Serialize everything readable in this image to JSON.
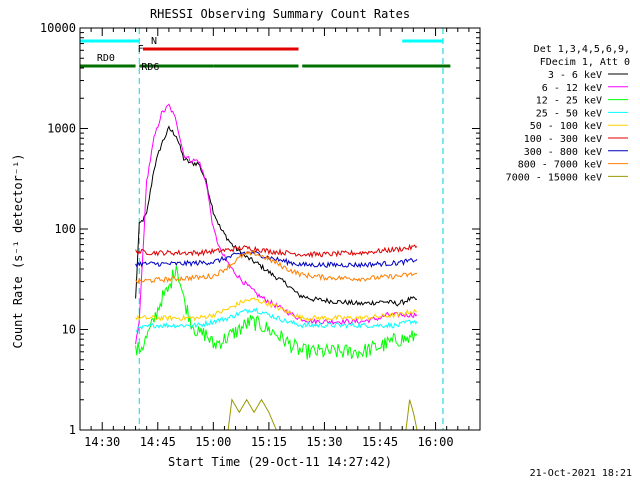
{
  "chart_data": {
    "type": "line",
    "title": "RHESSI Observing Summary Count Rates",
    "xlabel": "Start Time (29-Oct-11 14:27:42)",
    "ylabel": "Count Rate (s⁻¹ detector⁻¹)",
    "y_scale": "log",
    "ylim": [
      1,
      10000
    ],
    "xlim": [
      "14:24",
      "16:12"
    ],
    "x_ticks": [
      "14:30",
      "14:45",
      "15:00",
      "15:15",
      "15:30",
      "15:45",
      "16:00"
    ],
    "y_ticks": [
      "1",
      "10",
      "100",
      "1000",
      "10000"
    ],
    "grid": false,
    "legend_position": "right",
    "legend_header": [
      "Det 1,3,4,5,6,9,",
      "FDecim 1, Att 0"
    ],
    "footer_date": "21-Oct-2021 18:21",
    "state_bars": [
      {
        "label": "N",
        "color": "#00ffff",
        "segments": [
          [
            "14:24",
            "14:40"
          ],
          [
            "15:51",
            "16:02"
          ]
        ]
      },
      {
        "label": "F",
        "color": "#e00000",
        "segments": [
          [
            "14:41",
            "15:23"
          ]
        ]
      },
      {
        "label": "RD0",
        "color": "#007000",
        "segments": [
          [
            "14:24",
            "14:39"
          ]
        ]
      },
      {
        "label": "RD6",
        "color": "#007000",
        "segments": [
          [
            "14:40",
            "15:00"
          ],
          [
            "15:00",
            "15:23"
          ],
          [
            "15:24",
            "15:50"
          ],
          [
            "15:50",
            "16:04"
          ]
        ]
      }
    ],
    "eclipse_lines": [
      "14:40",
      "16:02"
    ],
    "series": [
      {
        "name": "3 - 6 keV",
        "color": "#000000",
        "points": [
          [
            "14:39",
            20
          ],
          [
            "14:40",
            110
          ],
          [
            "14:42",
            140
          ],
          [
            "14:44",
            400
          ],
          [
            "14:46",
            700
          ],
          [
            "14:48",
            1000
          ],
          [
            "14:50",
            850
          ],
          [
            "14:52",
            500
          ],
          [
            "14:54",
            450
          ],
          [
            "14:56",
            450
          ],
          [
            "14:58",
            300
          ],
          [
            "15:00",
            150
          ],
          [
            "15:02",
            100
          ],
          [
            "15:05",
            70
          ],
          [
            "15:08",
            55
          ],
          [
            "15:12",
            45
          ],
          [
            "15:16",
            35
          ],
          [
            "15:20",
            28
          ],
          [
            "15:23",
            22
          ],
          [
            "15:27",
            20
          ],
          [
            "15:33",
            19
          ],
          [
            "15:40",
            18
          ],
          [
            "15:46",
            19
          ],
          [
            "15:50",
            18
          ],
          [
            "15:53",
            20
          ],
          [
            "15:55",
            20
          ]
        ]
      },
      {
        "name": "6 - 12 keV",
        "color": "#ff00ff",
        "points": [
          [
            "14:39",
            7
          ],
          [
            "14:40",
            12
          ],
          [
            "14:42",
            300
          ],
          [
            "14:44",
            800
          ],
          [
            "14:46",
            1400
          ],
          [
            "14:48",
            1700
          ],
          [
            "14:50",
            1200
          ],
          [
            "14:52",
            550
          ],
          [
            "14:54",
            480
          ],
          [
            "14:56",
            480
          ],
          [
            "14:58",
            300
          ],
          [
            "15:00",
            100
          ],
          [
            "15:02",
            60
          ],
          [
            "15:05",
            40
          ],
          [
            "15:08",
            30
          ],
          [
            "15:12",
            22
          ],
          [
            "15:16",
            18
          ],
          [
            "15:20",
            15
          ],
          [
            "15:23",
            13
          ],
          [
            "15:27",
            12
          ],
          [
            "15:33",
            12
          ],
          [
            "15:40",
            12
          ],
          [
            "15:45",
            13
          ],
          [
            "15:47",
            14
          ],
          [
            "15:50",
            14
          ],
          [
            "15:53",
            14
          ],
          [
            "15:55",
            14
          ]
        ]
      },
      {
        "name": "12 - 25 keV",
        "color": "#00ff00",
        "points": [
          [
            "14:39",
            6
          ],
          [
            "14:41",
            7
          ],
          [
            "14:43",
            10
          ],
          [
            "14:46",
            20
          ],
          [
            "14:48",
            25
          ],
          [
            "14:50",
            45
          ],
          [
            "14:52",
            20
          ],
          [
            "14:54",
            12
          ],
          [
            "14:56",
            9
          ],
          [
            "14:58",
            9
          ],
          [
            "15:00",
            7
          ],
          [
            "15:03",
            8
          ],
          [
            "15:07",
            10
          ],
          [
            "15:10",
            12
          ],
          [
            "15:13",
            11
          ],
          [
            "15:17",
            9
          ],
          [
            "15:21",
            7
          ],
          [
            "15:24",
            6
          ],
          [
            "15:30",
            6
          ],
          [
            "15:40",
            6
          ],
          [
            "15:46",
            7
          ],
          [
            "15:50",
            8
          ],
          [
            "15:53",
            8
          ],
          [
            "15:55",
            9
          ]
        ]
      },
      {
        "name": "25 - 50 keV",
        "color": "#00ffff",
        "points": [
          [
            "14:39",
            10
          ],
          [
            "14:44",
            11
          ],
          [
            "14:50",
            11
          ],
          [
            "14:56",
            11
          ],
          [
            "15:00",
            12
          ],
          [
            "15:04",
            13
          ],
          [
            "15:08",
            15
          ],
          [
            "15:11",
            16
          ],
          [
            "15:15",
            14
          ],
          [
            "15:20",
            12
          ],
          [
            "15:24",
            11
          ],
          [
            "15:30",
            11
          ],
          [
            "15:40",
            11
          ],
          [
            "15:50",
            11
          ],
          [
            "15:53",
            12
          ],
          [
            "15:55",
            12
          ]
        ]
      },
      {
        "name": "50 - 100 keV",
        "color": "#ffd000",
        "points": [
          [
            "14:39",
            13
          ],
          [
            "14:44",
            13
          ],
          [
            "14:50",
            13
          ],
          [
            "14:56",
            13
          ],
          [
            "15:00",
            14
          ],
          [
            "15:04",
            16
          ],
          [
            "15:08",
            19
          ],
          [
            "15:11",
            20
          ],
          [
            "15:15",
            18
          ],
          [
            "15:20",
            15
          ],
          [
            "15:24",
            13
          ],
          [
            "15:30",
            13
          ],
          [
            "15:40",
            13
          ],
          [
            "15:50",
            14
          ],
          [
            "15:53",
            15
          ],
          [
            "15:55",
            15
          ]
        ]
      },
      {
        "name": "100 - 300 keV",
        "color": "#e00000",
        "points": [
          [
            "14:39",
            60
          ],
          [
            "14:44",
            58
          ],
          [
            "14:50",
            58
          ],
          [
            "14:56",
            58
          ],
          [
            "15:00",
            60
          ],
          [
            "15:04",
            62
          ],
          [
            "15:08",
            65
          ],
          [
            "15:11",
            64
          ],
          [
            "15:15",
            60
          ],
          [
            "15:20",
            58
          ],
          [
            "15:24",
            56
          ],
          [
            "15:30",
            56
          ],
          [
            "15:40",
            58
          ],
          [
            "15:50",
            63
          ],
          [
            "15:53",
            65
          ],
          [
            "15:55",
            67
          ]
        ]
      },
      {
        "name": "300 - 800 keV",
        "color": "#0000c0",
        "points": [
          [
            "14:39",
            45
          ],
          [
            "14:44",
            45
          ],
          [
            "14:50",
            45
          ],
          [
            "14:56",
            46
          ],
          [
            "15:00",
            47
          ],
          [
            "15:04",
            52
          ],
          [
            "15:08",
            58
          ],
          [
            "15:11",
            58
          ],
          [
            "15:15",
            52
          ],
          [
            "15:20",
            47
          ],
          [
            "15:24",
            44
          ],
          [
            "15:30",
            44
          ],
          [
            "15:40",
            44
          ],
          [
            "15:50",
            46
          ],
          [
            "15:53",
            48
          ],
          [
            "15:55",
            50
          ]
        ]
      },
      {
        "name": "800 - 7000 keV",
        "color": "#ff7f00",
        "points": [
          [
            "14:39",
            30
          ],
          [
            "14:44",
            31
          ],
          [
            "14:50",
            32
          ],
          [
            "14:56",
            33
          ],
          [
            "15:00",
            34
          ],
          [
            "15:04",
            42
          ],
          [
            "15:08",
            55
          ],
          [
            "15:11",
            58
          ],
          [
            "15:15",
            50
          ],
          [
            "15:20",
            40
          ],
          [
            "15:24",
            35
          ],
          [
            "15:30",
            33
          ],
          [
            "15:40",
            32
          ],
          [
            "15:50",
            34
          ],
          [
            "15:53",
            35
          ],
          [
            "15:55",
            36
          ]
        ]
      },
      {
        "name": "7000 - 15000 keV",
        "color": "#999900",
        "points": [
          [
            "15:00",
            1
          ],
          [
            "15:04",
            1
          ],
          [
            "15:05",
            2
          ],
          [
            "15:07",
            1.5
          ],
          [
            "15:09",
            2
          ],
          [
            "15:11",
            1.5
          ],
          [
            "15:13",
            2
          ],
          [
            "15:15",
            1.5
          ],
          [
            "15:17",
            1
          ],
          [
            "15:52",
            1
          ],
          [
            "15:53",
            2
          ],
          [
            "15:54",
            1.5
          ],
          [
            "15:55",
            1
          ]
        ]
      }
    ]
  }
}
